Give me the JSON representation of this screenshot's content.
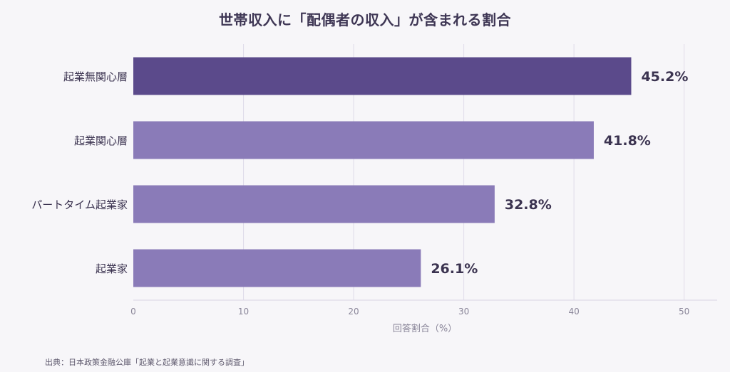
{
  "chart_data": {
    "type": "bar",
    "orientation": "horizontal",
    "title": "世帯収入に「配偶者の収入」が含まれる割合",
    "xlabel": "回答割合（%）",
    "ylabel": "",
    "categories": [
      "起業無関心層",
      "起業関心層",
      "パートタイム起業家",
      "起業家"
    ],
    "values": [
      45.2,
      41.8,
      32.8,
      26.1
    ],
    "value_labels": [
      "45.2%",
      "41.8%",
      "32.8%",
      "26.1%"
    ],
    "xlim": [
      0,
      53
    ],
    "xticks": [
      0,
      10,
      20,
      30,
      40,
      50
    ],
    "xtick_labels": [
      "0",
      "10",
      "20",
      "30",
      "40",
      "50"
    ],
    "grid": "vertical",
    "legend": "none",
    "colors": {
      "highlight": "#5b4a8b",
      "bar": "#8a7bb8",
      "grid": "#e0dcea",
      "axis_text": "#8a8699"
    }
  },
  "source": "出典：日本政策金融公庫「起業と起業意識に関する調査」"
}
